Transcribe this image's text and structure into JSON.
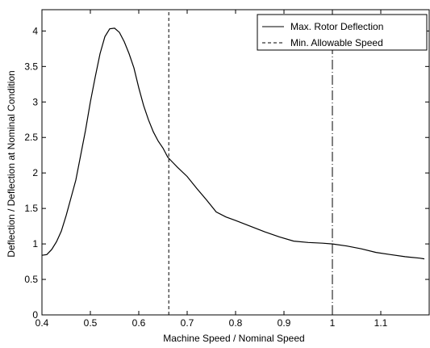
{
  "chart_data": {
    "type": "line",
    "title": "",
    "xlabel": "Machine Speed / Nominal  Speed",
    "ylabel": "Deflection / Deflection at Nominal Condition",
    "xlim": [
      0.4,
      1.2
    ],
    "ylim": [
      0,
      4.3
    ],
    "xticks": [
      0.4,
      0.5,
      0.6,
      0.7,
      0.8,
      0.9,
      1.0,
      1.1
    ],
    "xtick_labels": [
      "0.4",
      "0.5",
      "0.6",
      "0.7",
      "0.8",
      "0.9",
      "1",
      "1.1"
    ],
    "yticks": [
      0,
      0.5,
      1,
      1.5,
      2,
      2.5,
      3,
      3.5,
      4
    ],
    "ytick_labels": [
      "0",
      "0.5",
      "1",
      "1.5",
      "2",
      "2.5",
      "3",
      "3.5",
      "4"
    ],
    "grid": false,
    "legend_position": "top-right",
    "series": [
      {
        "name": "Max. Rotor Deflection",
        "style": "solid",
        "x": [
          0.4,
          0.41,
          0.42,
          0.43,
          0.44,
          0.45,
          0.46,
          0.47,
          0.48,
          0.49,
          0.5,
          0.51,
          0.52,
          0.53,
          0.54,
          0.55,
          0.56,
          0.57,
          0.58,
          0.59,
          0.6,
          0.61,
          0.62,
          0.63,
          0.64,
          0.65,
          0.66,
          0.67,
          0.68,
          0.7,
          0.72,
          0.74,
          0.76,
          0.78,
          0.8,
          0.83,
          0.86,
          0.89,
          0.92,
          0.95,
          0.98,
          1.0,
          1.03,
          1.06,
          1.09,
          1.12,
          1.15,
          1.18,
          1.19
        ],
        "y": [
          0.84,
          0.85,
          0.92,
          1.03,
          1.18,
          1.4,
          1.65,
          1.9,
          2.25,
          2.6,
          3.0,
          3.35,
          3.68,
          3.92,
          4.03,
          4.04,
          3.98,
          3.85,
          3.68,
          3.48,
          3.2,
          2.95,
          2.75,
          2.58,
          2.45,
          2.35,
          2.22,
          2.15,
          2.08,
          1.95,
          1.78,
          1.62,
          1.45,
          1.38,
          1.33,
          1.25,
          1.17,
          1.1,
          1.04,
          1.02,
          1.01,
          1.0,
          0.97,
          0.93,
          0.88,
          0.85,
          0.82,
          0.8,
          0.79
        ]
      },
      {
        "name": "Min. Allowable Speed",
        "style": "dashed",
        "x": [
          0.662,
          0.662
        ],
        "y": [
          0,
          4.3
        ]
      }
    ],
    "extra_lines": [
      {
        "style": "dash-dot",
        "x": [
          1.0,
          1.0
        ],
        "y": [
          0,
          4.3
        ]
      }
    ]
  }
}
